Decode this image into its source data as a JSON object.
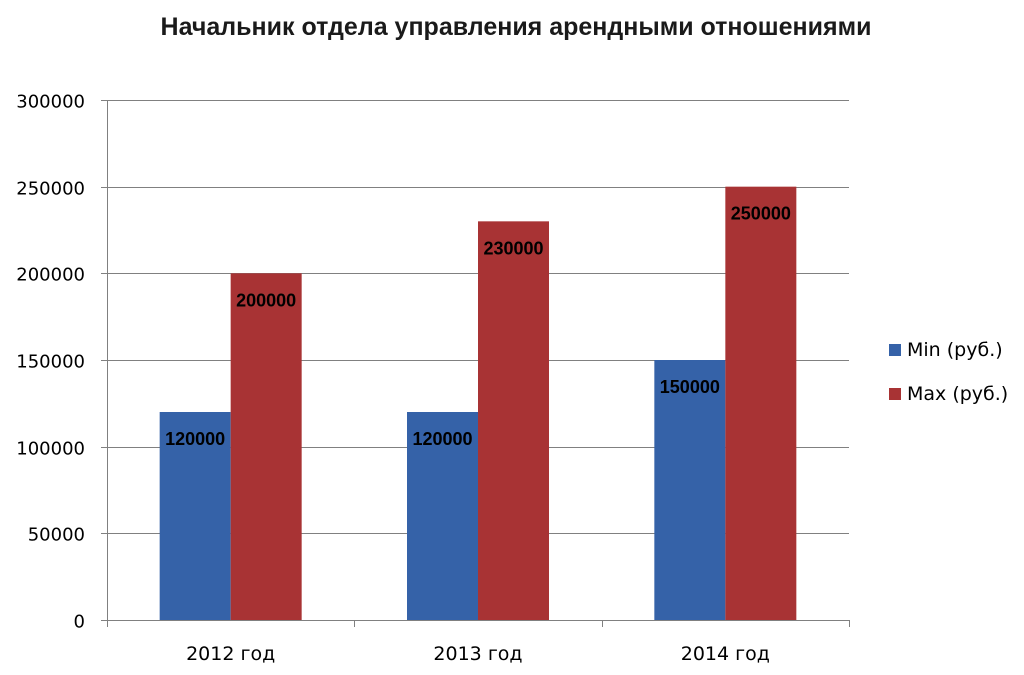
{
  "chart_data": {
    "type": "bar",
    "title": "Начальник отдела управления арендными отношениями",
    "xlabel": "",
    "ylabel": "",
    "categories": [
      "2012 год",
      "2013 год",
      "2014 год"
    ],
    "series": [
      {
        "name": "Min (руб.)",
        "values": [
          120000,
          120000,
          150000
        ],
        "color": "#3562A8"
      },
      {
        "name": "Max (руб.)",
        "values": [
          200000,
          230000,
          250000
        ],
        "color": "#A83334"
      }
    ],
    "ylim": [
      0,
      300000
    ],
    "yticks": [
      "0",
      "50000",
      "100000",
      "150000",
      "200000",
      "250000",
      "300000"
    ],
    "grid": true,
    "legend": "right",
    "data_labels": true
  }
}
